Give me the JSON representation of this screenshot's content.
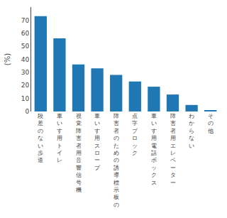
{
  "chart_data": {
    "type": "bar",
    "categories": [
      "段\n差\nの\nな\nい\n歩\n道",
      "車\nい\nす\n用\nト\nイ\nレ",
      "視\n覚\n障\n害\n者\n用\n音\n響\n信\n号\n機",
      "車\nい\nす\n用\nス\nロ\nー\nプ",
      "障\n害\n者\nの\nた\nめ\nの\n誘\n導\n標\n示\n板\nの",
      "点\n字\nブ\nロ\nッ\nク",
      "車\nい\nす\n用\n電\n話\nボ\nッ\nク\nス",
      "障\n害\n者\n用\nエ\nレ\nベ\nー\nタ\nー",
      "わ\nか\nら\nな\nい",
      "そ\nの\n他"
    ],
    "values": [
      73,
      56,
      36,
      33,
      28,
      23,
      19,
      13,
      5,
      1
    ],
    "ylabel": "(%)",
    "ylim": [
      0,
      80
    ],
    "yticks": [
      0,
      10,
      20,
      30,
      40,
      50,
      60,
      70
    ],
    "grid": false
  }
}
